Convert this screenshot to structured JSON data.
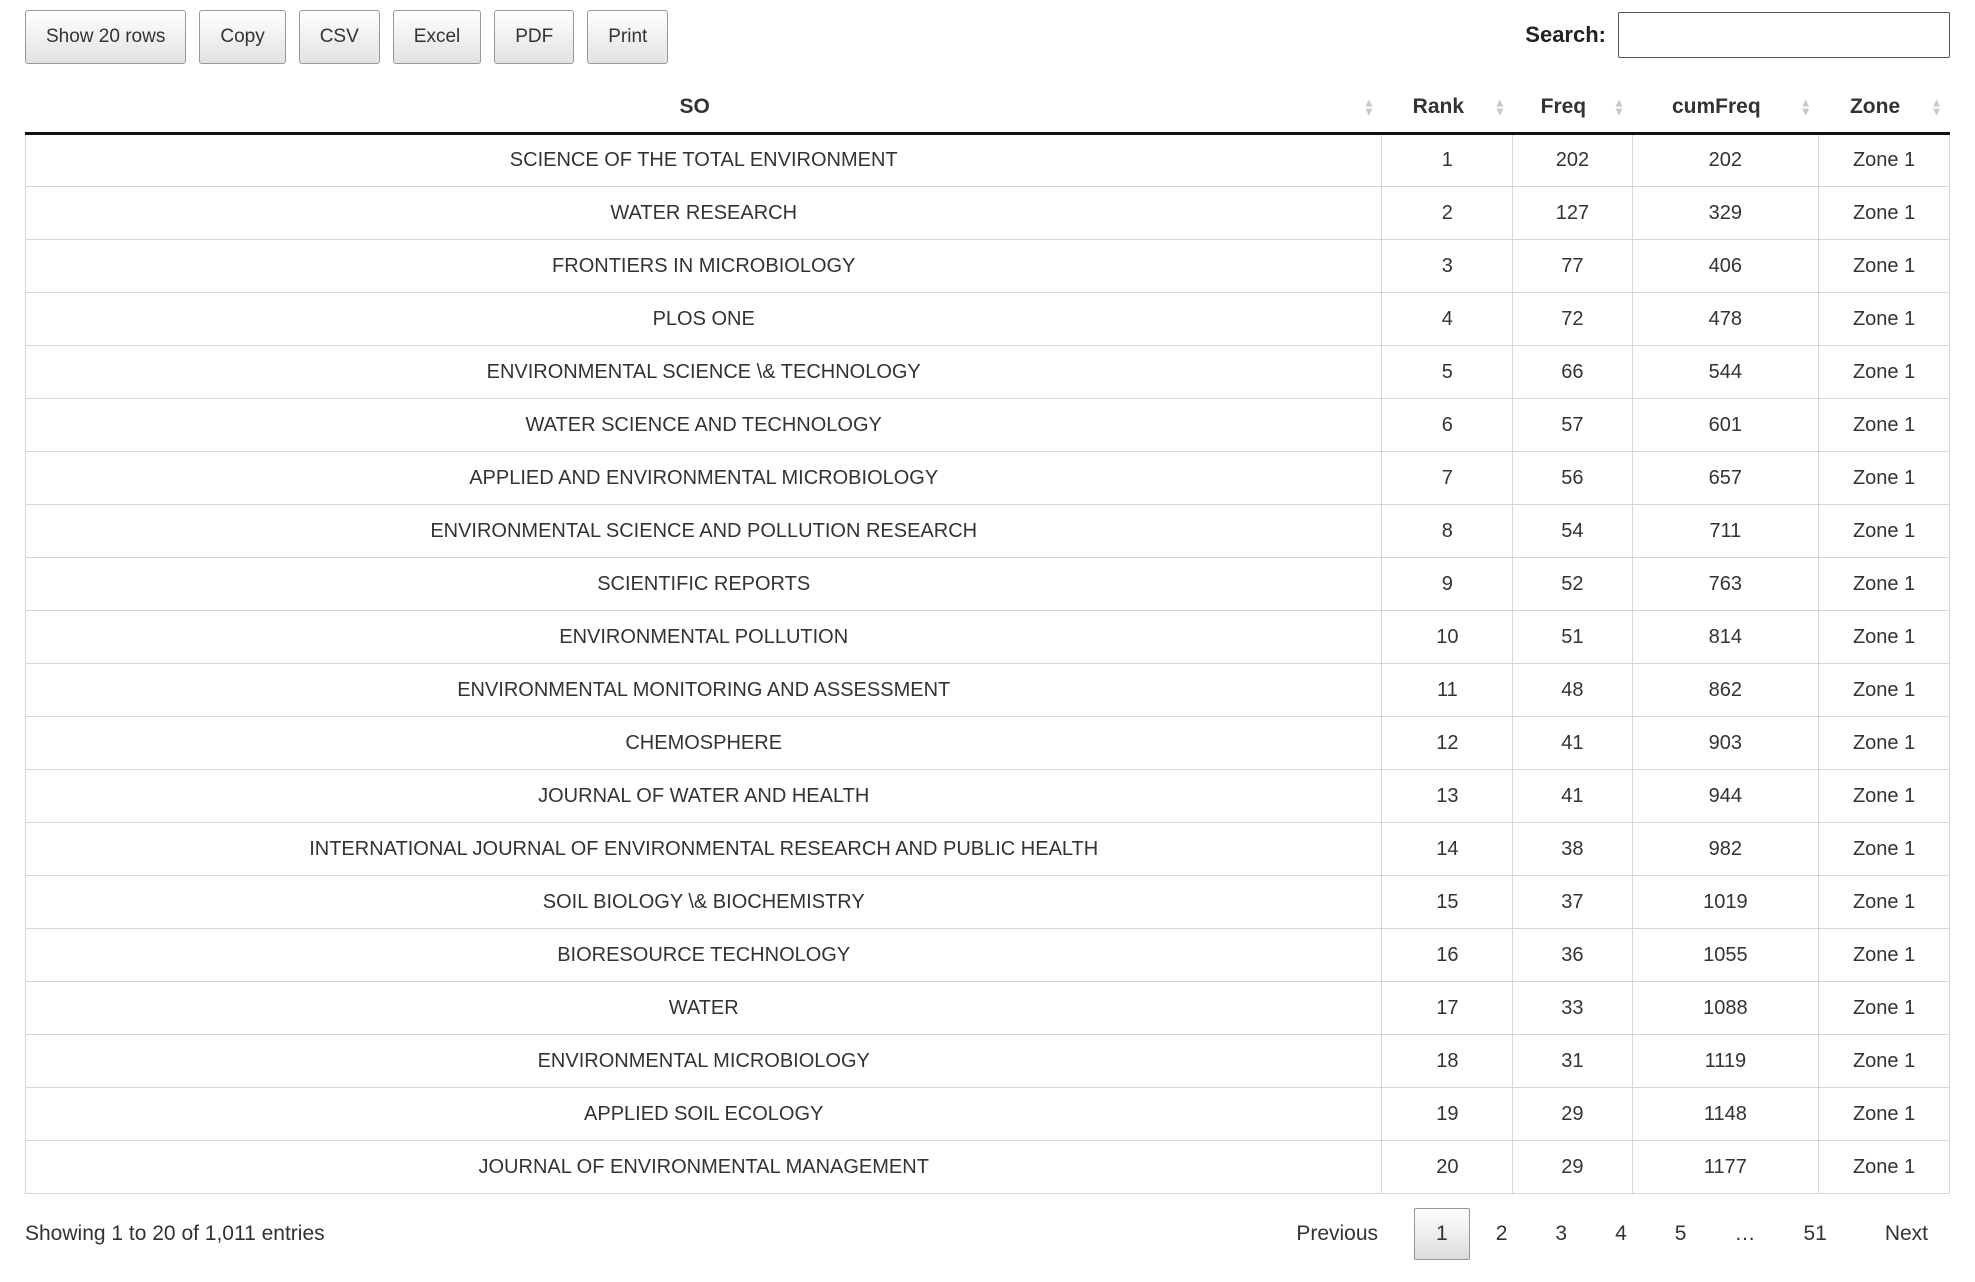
{
  "toolbar": {
    "buttons": [
      {
        "label": "Show 20 rows"
      },
      {
        "label": "Copy"
      },
      {
        "label": "CSV"
      },
      {
        "label": "Excel"
      },
      {
        "label": "PDF"
      },
      {
        "label": "Print"
      }
    ],
    "search_label": "Search:",
    "search_value": ""
  },
  "table": {
    "columns": [
      {
        "label": "SO"
      },
      {
        "label": "Rank"
      },
      {
        "label": "Freq"
      },
      {
        "label": "cumFreq"
      },
      {
        "label": "Zone"
      }
    ],
    "rows": [
      {
        "so": "SCIENCE OF THE TOTAL ENVIRONMENT",
        "rank": "1",
        "freq": "202",
        "cumfreq": "202",
        "zone": "Zone 1"
      },
      {
        "so": "WATER RESEARCH",
        "rank": "2",
        "freq": "127",
        "cumfreq": "329",
        "zone": "Zone 1"
      },
      {
        "so": "FRONTIERS IN MICROBIOLOGY",
        "rank": "3",
        "freq": "77",
        "cumfreq": "406",
        "zone": "Zone 1"
      },
      {
        "so": "PLOS ONE",
        "rank": "4",
        "freq": "72",
        "cumfreq": "478",
        "zone": "Zone 1"
      },
      {
        "so": "ENVIRONMENTAL SCIENCE \\& TECHNOLOGY",
        "rank": "5",
        "freq": "66",
        "cumfreq": "544",
        "zone": "Zone 1"
      },
      {
        "so": "WATER SCIENCE AND TECHNOLOGY",
        "rank": "6",
        "freq": "57",
        "cumfreq": "601",
        "zone": "Zone 1"
      },
      {
        "so": "APPLIED AND ENVIRONMENTAL MICROBIOLOGY",
        "rank": "7",
        "freq": "56",
        "cumfreq": "657",
        "zone": "Zone 1"
      },
      {
        "so": "ENVIRONMENTAL SCIENCE AND POLLUTION RESEARCH",
        "rank": "8",
        "freq": "54",
        "cumfreq": "711",
        "zone": "Zone 1"
      },
      {
        "so": "SCIENTIFIC REPORTS",
        "rank": "9",
        "freq": "52",
        "cumfreq": "763",
        "zone": "Zone 1"
      },
      {
        "so": "ENVIRONMENTAL POLLUTION",
        "rank": "10",
        "freq": "51",
        "cumfreq": "814",
        "zone": "Zone 1"
      },
      {
        "so": "ENVIRONMENTAL MONITORING AND ASSESSMENT",
        "rank": "11",
        "freq": "48",
        "cumfreq": "862",
        "zone": "Zone 1"
      },
      {
        "so": "CHEMOSPHERE",
        "rank": "12",
        "freq": "41",
        "cumfreq": "903",
        "zone": "Zone 1"
      },
      {
        "so": "JOURNAL OF WATER AND HEALTH",
        "rank": "13",
        "freq": "41",
        "cumfreq": "944",
        "zone": "Zone 1"
      },
      {
        "so": "INTERNATIONAL JOURNAL OF ENVIRONMENTAL RESEARCH AND PUBLIC HEALTH",
        "rank": "14",
        "freq": "38",
        "cumfreq": "982",
        "zone": "Zone 1"
      },
      {
        "so": "SOIL BIOLOGY \\& BIOCHEMISTRY",
        "rank": "15",
        "freq": "37",
        "cumfreq": "1019",
        "zone": "Zone 1"
      },
      {
        "so": "BIORESOURCE TECHNOLOGY",
        "rank": "16",
        "freq": "36",
        "cumfreq": "1055",
        "zone": "Zone 1"
      },
      {
        "so": "WATER",
        "rank": "17",
        "freq": "33",
        "cumfreq": "1088",
        "zone": "Zone 1"
      },
      {
        "so": "ENVIRONMENTAL MICROBIOLOGY",
        "rank": "18",
        "freq": "31",
        "cumfreq": "1119",
        "zone": "Zone 1"
      },
      {
        "so": "APPLIED SOIL ECOLOGY",
        "rank": "19",
        "freq": "29",
        "cumfreq": "1148",
        "zone": "Zone 1"
      },
      {
        "so": "JOURNAL OF ENVIRONMENTAL MANAGEMENT",
        "rank": "20",
        "freq": "29",
        "cumfreq": "1177",
        "zone": "Zone 1"
      }
    ]
  },
  "footer": {
    "info": "Showing 1 to 20 of 1,011 entries",
    "pagination": {
      "previous": "Previous",
      "pages": [
        "1",
        "2",
        "3",
        "4",
        "5",
        "…",
        "51"
      ],
      "current": "1",
      "next": "Next"
    }
  },
  "colors": {
    "header_border": "#111111",
    "cell_border": "#d6d6d6",
    "text": "#333333",
    "current_page_bg_top": "#ffffff",
    "current_page_bg_bottom": "#dcdcdc"
  }
}
